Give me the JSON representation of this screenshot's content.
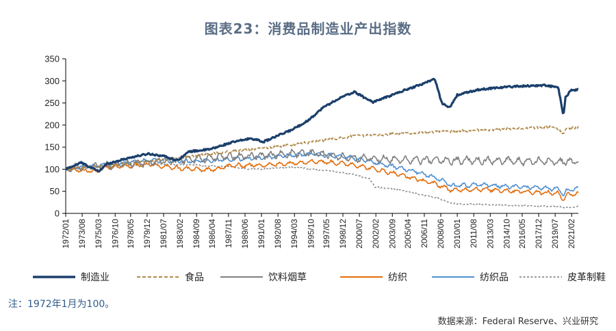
{
  "title": "图表23：消费品制造业产出指数",
  "note": "注：1972年1月为100。",
  "source": "数据来源：Federal Reserve、兴业研究",
  "chart_data": {
    "type": "line",
    "ylim": [
      0,
      350
    ],
    "yticks": [
      0,
      50,
      100,
      150,
      200,
      250,
      300,
      350
    ],
    "x_tick_labels": [
      "1972/01",
      "1973/08",
      "1975/03",
      "1976/10",
      "1978/05",
      "1979/12",
      "1981/07",
      "1983/02",
      "1984/09",
      "1986/04",
      "1987/11",
      "1989/06",
      "1991/01",
      "1992/08",
      "1994/03",
      "1995/10",
      "1997/05",
      "1998/12",
      "2000/07",
      "2002/02",
      "2003/09",
      "2005/04",
      "2006/11",
      "2008/06",
      "2010/01",
      "2011/08",
      "2013/03",
      "2014/10",
      "2016/05",
      "2017/12",
      "2019/07",
      "2021/02"
    ],
    "x_years": [
      1972.0,
      1973.6,
      1975.2,
      1976.8,
      1978.3,
      1979.9,
      1981.5,
      1983.1,
      1984.7,
      1986.2,
      1987.8,
      1989.4,
      1991.0,
      1992.6,
      1994.2,
      1995.8,
      1997.3,
      1998.9,
      2000.5,
      2002.1,
      2003.7,
      2005.2,
      2006.8,
      2008.4,
      2010.0,
      2011.6,
      2013.2,
      2014.8,
      2016.3,
      2017.9,
      2019.5,
      2021.1
    ],
    "x_range": [
      1972.0,
      2021.75
    ],
    "legend": "bottom",
    "grid": false,
    "series": [
      {
        "name": "制造业",
        "color": "#1b3f6b",
        "style": "solid",
        "width": 3.2,
        "noise": 2,
        "x": [
          1972,
          1973.5,
          1975.2,
          1976,
          1978,
          1980,
          1981.5,
          1982.8,
          1984,
          1986,
          1988,
          1990,
          1991.2,
          1992,
          1994,
          1995.5,
          1997,
          1998.5,
          2000,
          2001.8,
          2003,
          2005,
          2006.5,
          2007.8,
          2008.5,
          2009.3,
          2010,
          2012,
          2014,
          2016,
          2018.5,
          2019.8,
          2020.3,
          2020.5,
          2021,
          2021.75
        ],
        "y": [
          100,
          115,
          95,
          112,
          125,
          135,
          130,
          120,
          140,
          145,
          160,
          170,
          162,
          170,
          190,
          210,
          240,
          260,
          275,
          252,
          262,
          280,
          292,
          305,
          250,
          240,
          268,
          280,
          285,
          288,
          290,
          285,
          220,
          262,
          278,
          280
        ]
      },
      {
        "name": "食品",
        "color": "#b08a4a",
        "style": "dashed",
        "width": 1.8,
        "noise": 3,
        "x": [
          1972,
          1976,
          1980,
          1984,
          1988,
          1992,
          1996,
          2000,
          2004,
          2008,
          2012,
          2016,
          2019.5,
          2020.3,
          2020.6,
          2021.75
        ],
        "y": [
          100,
          108,
          118,
          128,
          140,
          150,
          162,
          175,
          180,
          185,
          188,
          192,
          197,
          180,
          192,
          195
        ]
      },
      {
        "name": "饮料烟草",
        "color": "#7f7f7f",
        "style": "solid",
        "width": 1.6,
        "noise": 9,
        "x": [
          1972,
          1976,
          1980,
          1984,
          1988,
          1992,
          1996,
          1998,
          2000,
          2004,
          2008,
          2012,
          2016,
          2020,
          2021.75
        ],
        "y": [
          102,
          108,
          115,
          122,
          128,
          132,
          138,
          130,
          125,
          122,
          120,
          120,
          118,
          118,
          118
        ]
      },
      {
        "name": "纺织",
        "color": "#e36c09",
        "style": "solid",
        "width": 1.6,
        "noise": 5,
        "x": [
          1972,
          1975,
          1976,
          1980,
          1983,
          1986,
          1988,
          1992,
          1996,
          1998,
          2000,
          2002,
          2004,
          2006,
          2008,
          2009.5,
          2012,
          2016,
          2019.8,
          2020.3,
          2020.6,
          2021.75
        ],
        "y": [
          100,
          95,
          105,
          110,
          102,
          98,
          108,
          110,
          118,
          115,
          110,
          100,
          90,
          78,
          66,
          52,
          55,
          50,
          45,
          32,
          42,
          45
        ]
      },
      {
        "name": "纺织品",
        "color": "#4f8fcf",
        "style": "solid",
        "width": 1.6,
        "noise": 5,
        "x": [
          1972,
          1976,
          1980,
          1984,
          1988,
          1992,
          1996,
          1998,
          2000,
          2002,
          2004,
          2006,
          2008,
          2009.5,
          2012,
          2016,
          2019.8,
          2020.3,
          2020.6,
          2021.75
        ],
        "y": [
          102,
          110,
          120,
          118,
          122,
          128,
          135,
          130,
          125,
          115,
          105,
          95,
          80,
          62,
          65,
          60,
          55,
          42,
          52,
          56
        ]
      },
      {
        "name": "皮革制鞋",
        "color": "#8a8a8a",
        "style": "dotted",
        "width": 1.5,
        "noise": 1.5,
        "x": [
          1972,
          1976,
          1980,
          1984,
          1988,
          1990,
          1992,
          1994,
          1996,
          1998,
          2000,
          2001.5,
          2002,
          2004,
          2006,
          2008,
          2009.5,
          2012,
          2016,
          2020,
          2020.4,
          2021.75
        ],
        "y": [
          100,
          105,
          112,
          110,
          105,
          100,
          102,
          105,
          100,
          95,
          88,
          78,
          60,
          55,
          45,
          35,
          22,
          20,
          18,
          15,
          12,
          16
        ]
      }
    ]
  }
}
